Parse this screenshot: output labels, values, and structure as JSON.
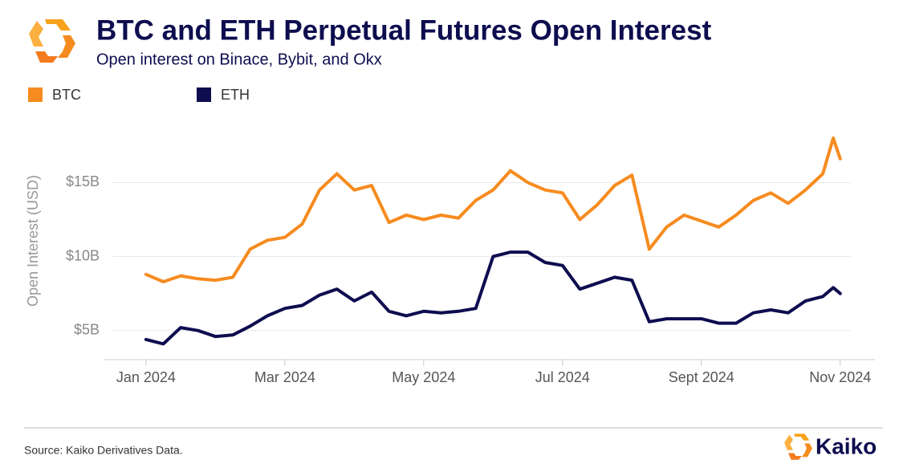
{
  "chart_data": {
    "type": "line",
    "title": "BTC and ETH Perpetual Futures Open Interest",
    "subtitle": "Open interest on Binace, Bybit, and Okx",
    "y_label": "Open Interest (USD)",
    "source": "Source: Kaiko Derivatives Data.",
    "brand": "Kaiko",
    "x": [
      0,
      0.25,
      0.5,
      0.75,
      1,
      1.25,
      1.5,
      1.75,
      2,
      2.25,
      2.5,
      2.75,
      3,
      3.25,
      3.5,
      3.75,
      4,
      4.25,
      4.5,
      4.75,
      5,
      5.25,
      5.5,
      5.75,
      6,
      6.25,
      6.5,
      6.75,
      7,
      7.25,
      7.5,
      7.75,
      8,
      8.25,
      8.5,
      8.75,
      9,
      9.25,
      9.5,
      9.75,
      9.9,
      10
    ],
    "xlim": [
      -0.6,
      10.5
    ],
    "xticks": [
      {
        "value": 0,
        "label": "Jan 2024"
      },
      {
        "value": 2,
        "label": "Mar 2024"
      },
      {
        "value": 4,
        "label": "May 2024"
      },
      {
        "value": 6,
        "label": "Jul 2024"
      },
      {
        "value": 8,
        "label": "Sept 2024"
      },
      {
        "value": 10,
        "label": "Nov 2024"
      }
    ],
    "ylim": [
      3.2,
      19.2
    ],
    "yticks": [
      {
        "value": 5,
        "label": "$5B"
      },
      {
        "value": 10,
        "label": "$10B"
      },
      {
        "value": 15,
        "label": "$15B"
      }
    ],
    "grid": true,
    "series": [
      {
        "name": "BTC",
        "color": "#f68b1f",
        "values": [
          8.8,
          8.3,
          8.7,
          8.5,
          8.4,
          8.6,
          10.5,
          11.1,
          11.3,
          12.2,
          14.5,
          15.6,
          14.5,
          14.8,
          12.3,
          12.8,
          12.5,
          12.8,
          12.6,
          13.8,
          14.5,
          15.8,
          15.0,
          14.5,
          14.3,
          12.5,
          13.5,
          14.8,
          15.5,
          10.5,
          12.0,
          12.8,
          12.4,
          12.0,
          12.8,
          13.8,
          14.3,
          13.6,
          14.5,
          15.6,
          18.0,
          16.6
        ]
      },
      {
        "name": "ETH",
        "color": "#0d0d4f",
        "values": [
          4.4,
          4.1,
          5.2,
          5.0,
          4.6,
          4.7,
          5.3,
          6.0,
          6.5,
          6.7,
          7.4,
          7.8,
          7.0,
          7.6,
          6.3,
          6.0,
          6.3,
          6.2,
          6.3,
          6.5,
          10.0,
          10.3,
          10.3,
          9.6,
          9.4,
          7.8,
          8.2,
          8.6,
          8.4,
          5.6,
          5.8,
          5.8,
          5.8,
          5.5,
          5.5,
          6.2,
          6.4,
          6.2,
          7.0,
          7.3,
          7.9,
          7.5
        ]
      }
    ]
  }
}
